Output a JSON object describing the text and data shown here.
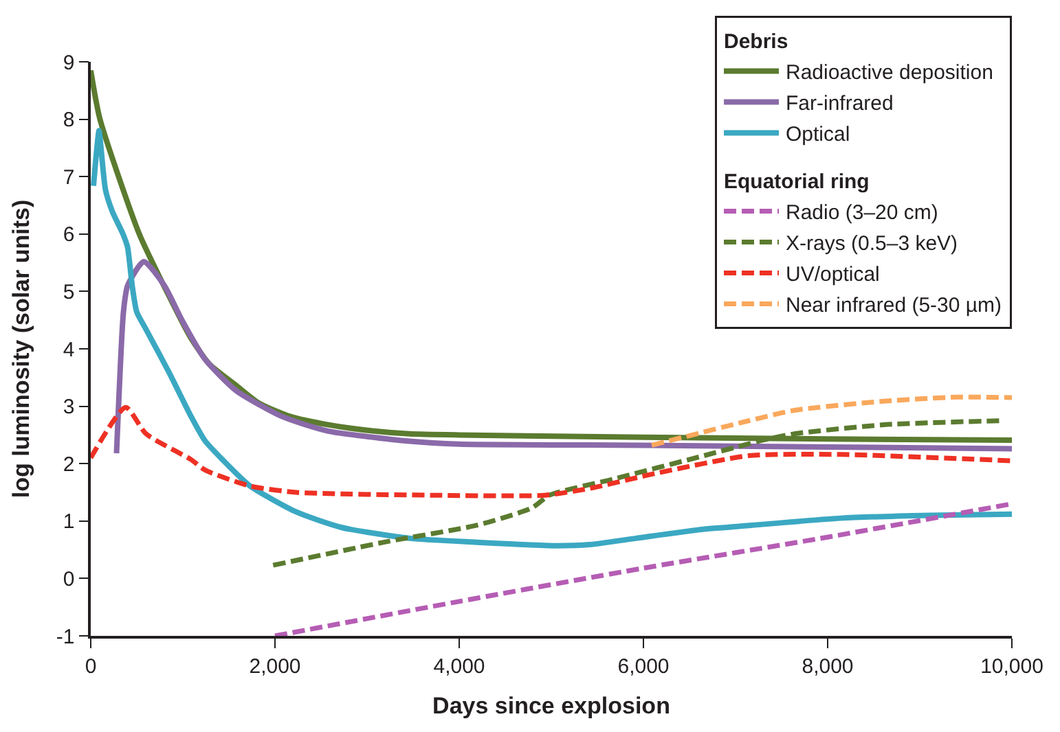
{
  "chart_data": {
    "type": "line",
    "xlabel": "Days since explosion",
    "ylabel": "log luminosity (solar units)",
    "xlim": [
      0,
      10000
    ],
    "ylim": [
      -1,
      9
    ],
    "xticks": [
      0,
      {
        "value": 2000,
        "label": "2,000"
      },
      {
        "value": 4000,
        "label": "4,000"
      },
      {
        "value": 6000,
        "label": "6,000"
      },
      {
        "value": 8000,
        "label": "8,000"
      },
      {
        "value": 10000,
        "label": "10,000"
      }
    ],
    "yticks": [
      -1,
      0,
      1,
      2,
      3,
      4,
      5,
      6,
      7,
      8,
      9
    ],
    "legend": "top right",
    "marker": "none",
    "annotations": [
      "Debris",
      "Equatorial ring"
    ],
    "series": [
      {
        "name": "Radioactive deposition",
        "color": "#5b7b2f",
        "line_style": "solid",
        "x": [
          0,
          100,
          527,
          840,
          1090,
          1290,
          1580,
          1830,
          2170,
          2570,
          3060,
          3460,
          4000,
          6000,
          8000,
          10000
        ],
        "values": [
          8.85,
          8.0,
          6.0,
          4.95,
          4.18,
          3.73,
          3.36,
          3.05,
          2.82,
          2.68,
          2.57,
          2.52,
          2.5,
          2.46,
          2.43,
          2.41
        ]
      },
      {
        "name": "Far-infrared",
        "color": "#8a6aa9",
        "line_style": "solid",
        "x": [
          280,
          355,
          400,
          576,
          800,
          990,
          1240,
          1580,
          2080,
          2570,
          3460,
          4000,
          6000,
          8000,
          10000
        ],
        "values": [
          2.18,
          4.64,
          5.1,
          5.52,
          5.1,
          4.5,
          3.82,
          3.27,
          2.82,
          2.57,
          2.39,
          2.34,
          2.32,
          2.29,
          2.26
        ]
      },
      {
        "name": "Optical",
        "color": "#3ba8c2",
        "line_style": "solid",
        "x": [
          30,
          90,
          110,
          160,
          235,
          350,
          400,
          450,
          500,
          600,
          850,
          1090,
          1240,
          1430,
          1730,
          2230,
          2720,
          3460,
          4200,
          5040,
          5420,
          5920,
          6660,
          6900,
          8140,
          9110,
          10000
        ],
        "values": [
          6.84,
          7.8,
          7.52,
          6.77,
          6.39,
          6.0,
          5.77,
          5.1,
          4.64,
          4.34,
          3.59,
          2.82,
          2.4,
          2.07,
          1.61,
          1.16,
          0.89,
          0.7,
          0.63,
          0.57,
          0.59,
          0.7,
          0.86,
          0.89,
          1.05,
          1.1,
          1.12
        ]
      },
      {
        "name": "Radio (3–20 cm)",
        "color": "#b55db4",
        "line_style": "dashed",
        "x": [
          2000,
          4000,
          6000,
          8000,
          10000
        ],
        "values": [
          -1.0,
          -0.4,
          0.18,
          0.72,
          1.3
        ]
      },
      {
        "name": "X-rays (0.5–3 keV)",
        "color": "#5b7b2f",
        "line_style": "dashed",
        "x": [
          1980,
          3210,
          4200,
          4790,
          4980,
          5670,
          6660,
          7300,
          7640,
          8630,
          9910
        ],
        "values": [
          0.23,
          0.64,
          0.93,
          1.23,
          1.45,
          1.73,
          2.14,
          2.41,
          2.52,
          2.68,
          2.75
        ]
      },
      {
        "name": "UV/optical",
        "color": "#ee3124",
        "line_style": "dashed",
        "x": [
          0,
          380,
          600,
          1090,
          1240,
          1730,
          2230,
          3700,
          4930,
          5420,
          6160,
          7150,
          8140,
          10000
        ],
        "values": [
          2.1,
          2.98,
          2.52,
          2.07,
          1.89,
          1.61,
          1.5,
          1.45,
          1.45,
          1.57,
          1.84,
          2.14,
          2.16,
          2.05
        ]
      },
      {
        "name": "Near infrared (5-30 µm)",
        "color": "#f9a85c",
        "line_style": "dashed",
        "x": [
          6090,
          7150,
          7640,
          8630,
          9410,
          10000
        ],
        "values": [
          2.32,
          2.75,
          2.93,
          3.09,
          3.16,
          3.15
        ]
      }
    ]
  }
}
